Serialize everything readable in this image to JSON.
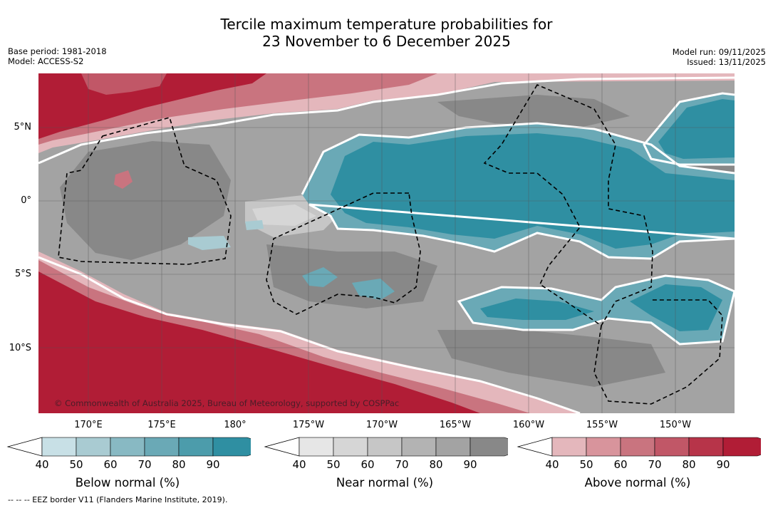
{
  "header": {
    "title_line1": "Tercile maximum temperature probabilities for",
    "title_line2": "23 November to 6 December 2025",
    "base_period": "Base period: 1981-2018",
    "model": "Model: ACCESS-S2",
    "model_run": "Model run: 09/11/2025",
    "issued": "Issued: 13/11/2025"
  },
  "map": {
    "lat_labels": [
      "5°N",
      "0°",
      "5°S",
      "10°S"
    ],
    "lon_labels": [
      "170°E",
      "175°E",
      "180°",
      "175°W",
      "170°W",
      "165°W",
      "160°W",
      "155°W",
      "150°W"
    ],
    "copyright": "© Commonwealth of Australia 2025, Bureau of Meteorology, supported by COSPPac"
  },
  "legends": [
    {
      "title": "Below normal (%)",
      "ticks": [
        "40",
        "50",
        "60",
        "70",
        "80",
        "90"
      ],
      "colors": [
        "#c8e0e6",
        "#a9cbd2",
        "#88b9c3",
        "#6aa9b6",
        "#4c9cab",
        "#2f8fa2"
      ]
    },
    {
      "title": "Near normal (%)",
      "ticks": [
        "40",
        "50",
        "60",
        "70",
        "80",
        "90"
      ],
      "colors": [
        "#e6e6e6",
        "#d6d6d6",
        "#c6c6c6",
        "#b3b3b3",
        "#a3a3a3",
        "#888888"
      ]
    },
    {
      "title": "Above normal (%)",
      "ticks": [
        "40",
        "50",
        "60",
        "70",
        "80",
        "90"
      ],
      "colors": [
        "#e4b7bc",
        "#d8949c",
        "#c9747f",
        "#c15767",
        "#b73449",
        "#b11d36"
      ]
    }
  ],
  "colors": {
    "red_dark": "#b11d36",
    "red_mid": "#c9747f",
    "red_light": "#e4b7bc",
    "teal_dark": "#2f8fa2",
    "teal_mid": "#6aa9b6",
    "teal_light": "#a9cbd2",
    "grey_dark": "#888888",
    "grey_mid": "#a3a3a3",
    "grey_light": "#c6c6c6",
    "grey_pale": "#d6d6d6"
  },
  "footer": {
    "eez_note": "--  --  -- EEZ border V11 (Flanders Marine Institute, 2019)."
  }
}
